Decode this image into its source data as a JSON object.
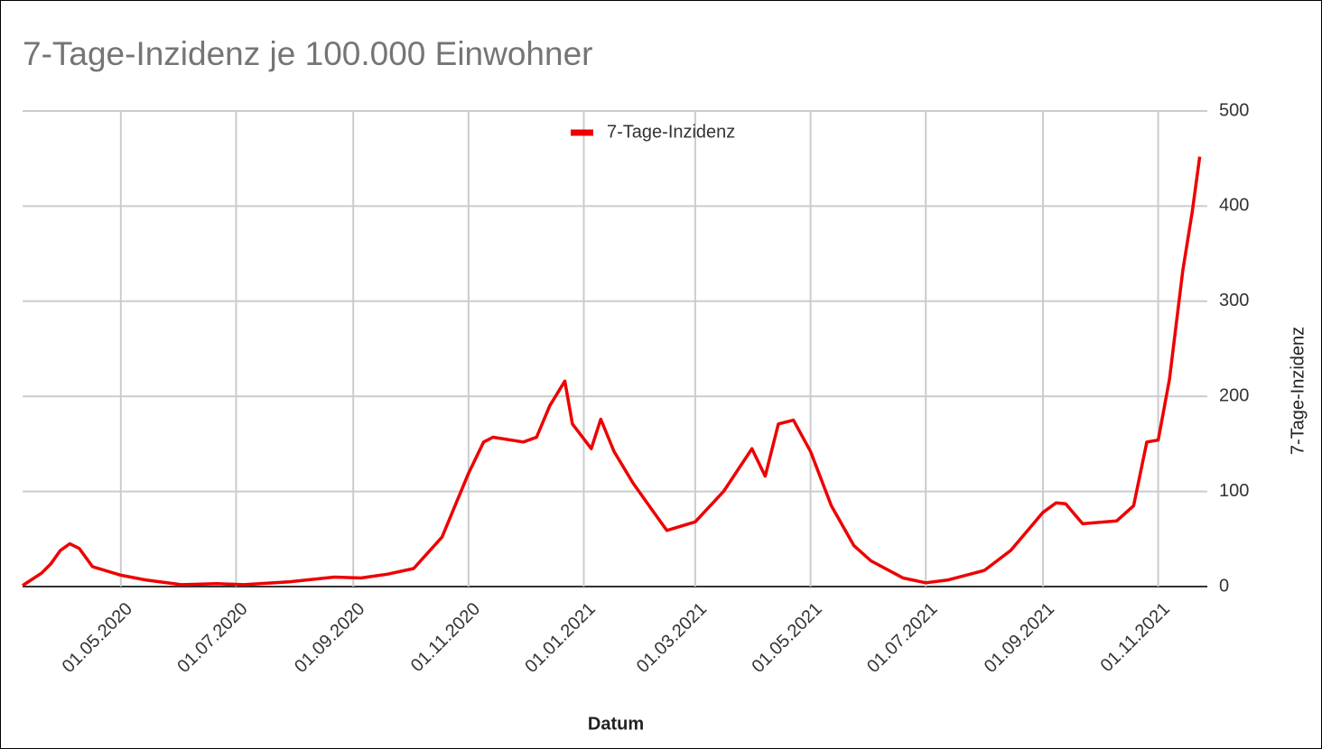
{
  "chart_data": {
    "type": "line",
    "title": "7-Tage-Inzidenz je 100.000 Einwohner",
    "x_label": "Datum",
    "y_label": "7-Tage-Inzidenz",
    "legend": "top",
    "grid": true,
    "x": [
      "2020-03-10",
      "2020-03-20",
      "2020-03-25",
      "2020-03-30",
      "2020-04-04",
      "2020-04-09",
      "2020-04-16",
      "2020-05-01",
      "2020-05-14",
      "2020-06-02",
      "2020-06-21",
      "2020-07-05",
      "2020-07-29",
      "2020-08-22",
      "2020-09-05",
      "2020-09-19",
      "2020-10-03",
      "2020-10-18",
      "2020-11-01",
      "2020-11-09",
      "2020-11-14",
      "2020-11-30",
      "2020-12-07",
      "2020-12-14",
      "2020-12-22",
      "2020-12-26",
      "2021-01-05",
      "2021-01-10",
      "2021-01-17",
      "2021-01-27",
      "2021-02-06",
      "2021-02-14",
      "2021-03-01",
      "2021-03-16",
      "2021-03-31",
      "2021-04-07",
      "2021-04-14",
      "2021-04-22",
      "2021-05-01",
      "2021-05-12",
      "2021-05-24",
      "2021-06-02",
      "2021-06-19",
      "2021-07-01",
      "2021-07-13",
      "2021-08-01",
      "2021-08-15",
      "2021-09-01",
      "2021-09-08",
      "2021-09-13",
      "2021-09-22",
      "2021-10-10",
      "2021-10-19",
      "2021-10-26",
      "2021-11-01",
      "2021-11-07",
      "2021-11-14",
      "2021-11-19",
      "2021-11-23"
    ],
    "series": [
      {
        "name": "7-Tage-Inzidenz",
        "color": "#ee0000",
        "values": [
          1,
          14,
          24,
          38,
          45,
          40,
          21,
          12,
          7,
          2,
          3,
          2,
          5,
          10,
          9,
          13,
          19,
          52,
          119,
          152,
          157,
          152,
          157,
          190,
          216,
          171,
          145,
          176,
          142,
          109,
          81,
          59,
          68,
          100,
          145,
          116,
          171,
          175,
          142,
          85,
          43,
          27,
          9,
          4,
          7,
          17,
          38,
          78,
          88,
          87,
          66,
          69,
          85,
          152,
          154,
          218,
          332,
          394,
          452
        ]
      }
    ],
    "xlim": [
      "2020-03-10",
      "2021-11-27"
    ],
    "xticks": [
      {
        "value": "2020-05-01",
        "label": "01.05.2020"
      },
      {
        "value": "2020-07-01",
        "label": "01.07.2020"
      },
      {
        "value": "2020-09-01",
        "label": "01.09.2020"
      },
      {
        "value": "2020-11-01",
        "label": "01.11.2020"
      },
      {
        "value": "2021-01-01",
        "label": "01.01.2021"
      },
      {
        "value": "2021-03-01",
        "label": "01.03.2021"
      },
      {
        "value": "2021-05-01",
        "label": "01.05.2021"
      },
      {
        "value": "2021-07-01",
        "label": "01.07.2021"
      },
      {
        "value": "2021-09-01",
        "label": "01.09.2021"
      },
      {
        "value": "2021-11-01",
        "label": "01.11.2021"
      }
    ],
    "ylim": [
      0,
      500
    ],
    "yticks": [
      0,
      100,
      200,
      300,
      400,
      500
    ]
  }
}
